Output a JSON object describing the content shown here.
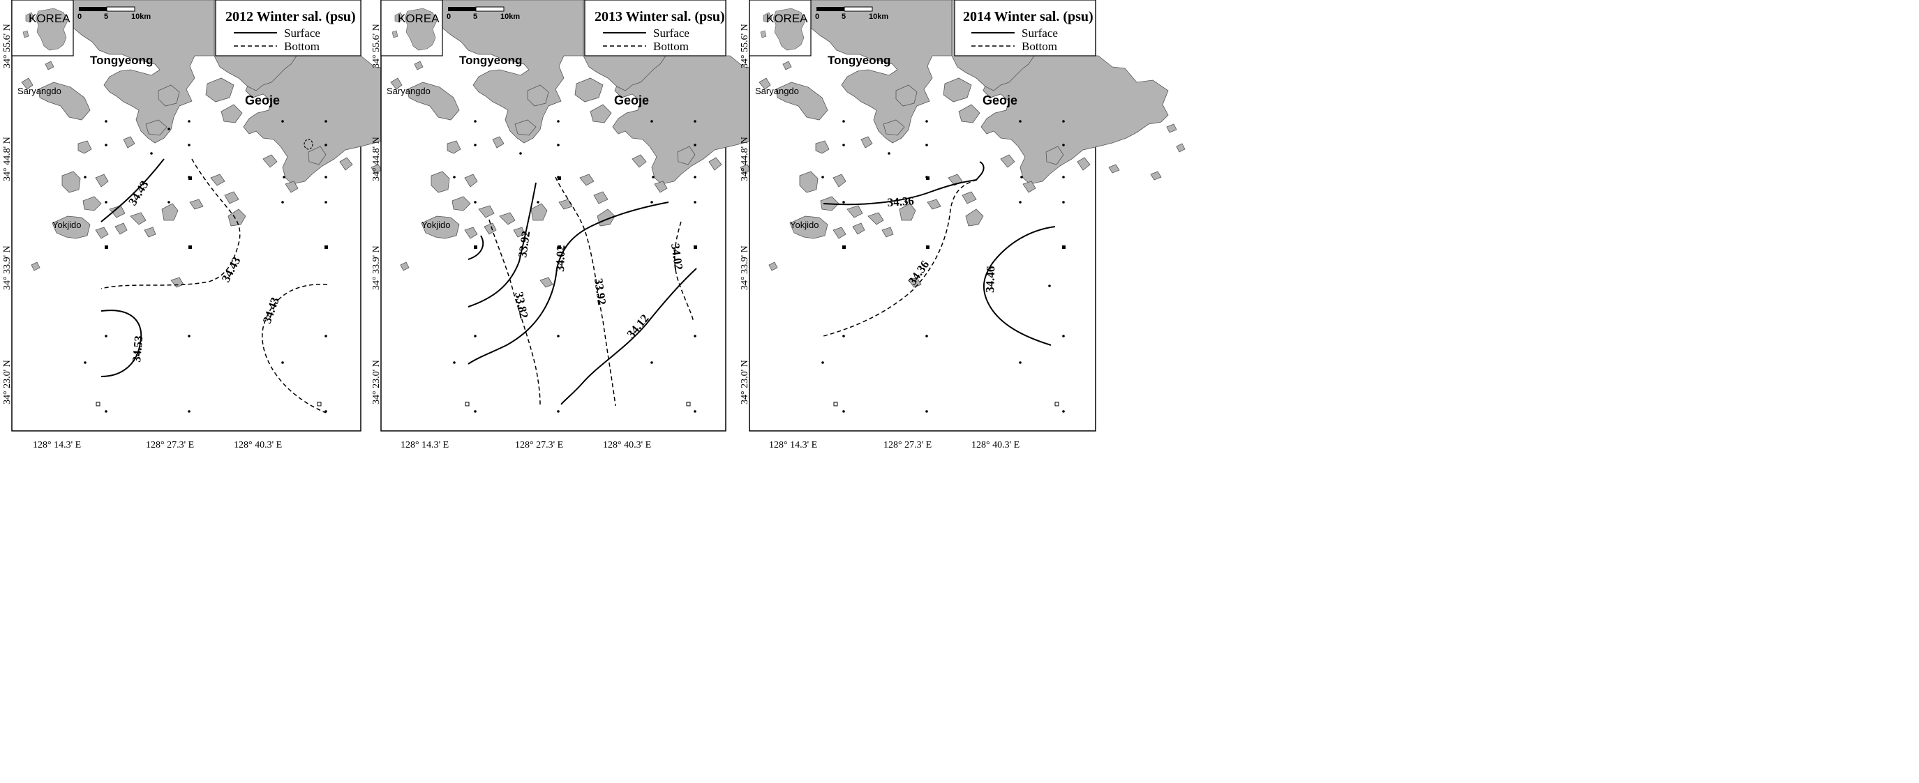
{
  "colors": {
    "land": "#b3b3b3",
    "line": "#000000",
    "background": "#ffffff"
  },
  "legend": {
    "surface_label": "Surface",
    "bottom_label": "Bottom"
  },
  "inset": {
    "label": "KOREA"
  },
  "scalebar": {
    "tick0": "0",
    "tick1": "5",
    "tick2": "10km"
  },
  "places": {
    "tongyeong": "Tongyeong",
    "geoje": "Geoje",
    "saryangdo": "Saryangdo",
    "yokjido": "Yokjido"
  },
  "axes": {
    "x_ticks": [
      "128° 14.3' E",
      "128° 27.3' E",
      "128° 40.3' E"
    ],
    "y_ticks": [
      "34° 55.6' N",
      "34° 44.8' N",
      "34° 33.9' N",
      "34° 23.0' N"
    ]
  },
  "panels": [
    {
      "title": "2012 Winter sal. (psu)",
      "contours": [
        {
          "label": "34.43",
          "layer": "surface"
        },
        {
          "label": "34.53",
          "layer": "surface"
        },
        {
          "label": "34.43",
          "layer": "bottom"
        },
        {
          "label": "34.43",
          "layer": "bottom"
        }
      ]
    },
    {
      "title": "2013 Winter sal. (psu)",
      "contours": [
        {
          "label": "33.92",
          "layer": "surface"
        },
        {
          "label": "34.02",
          "layer": "surface"
        },
        {
          "label": "34.12",
          "layer": "surface"
        },
        {
          "label": "33.82",
          "layer": "bottom"
        },
        {
          "label": "33.92",
          "layer": "bottom"
        },
        {
          "label": "34.02",
          "layer": "bottom"
        }
      ]
    },
    {
      "title": "2014 Winter sal. (psu)",
      "contours": [
        {
          "label": "34.36",
          "layer": "surface"
        },
        {
          "label": "34.46",
          "layer": "surface"
        },
        {
          "label": "34.36",
          "layer": "bottom"
        }
      ]
    }
  ]
}
